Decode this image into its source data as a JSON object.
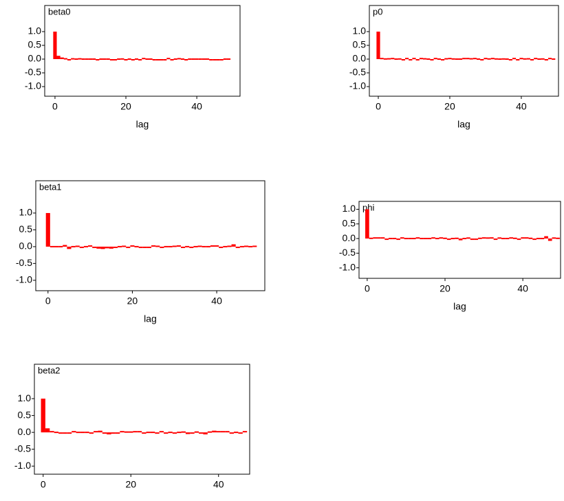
{
  "chart_data": [
    {
      "type": "bar",
      "title": "beta0",
      "xlabel": "lag",
      "color": "#ff0000",
      "x": [
        0,
        1,
        2,
        3,
        4,
        5,
        6,
        7,
        8,
        9,
        10,
        11,
        12,
        13,
        14,
        15,
        16,
        17,
        18,
        19,
        20,
        21,
        22,
        23,
        24,
        25,
        26,
        27,
        28,
        29,
        30,
        31,
        32,
        33,
        34,
        35,
        36,
        37,
        38,
        39,
        40,
        41,
        42,
        43,
        44,
        45,
        46,
        47,
        48,
        49
      ],
      "values": [
        1.0,
        0.12,
        0.06,
        0.01,
        -0.03,
        0.01,
        0.0,
        0.01,
        0.0,
        0.0,
        -0.01,
        0.0,
        -0.03,
        0.0,
        0.0,
        0.0,
        -0.04,
        -0.05,
        -0.02,
        0.03,
        -0.03,
        0.0,
        -0.04,
        0.0,
        -0.04,
        0.02,
        0.0,
        0.0,
        -0.03,
        -0.04,
        -0.04,
        -0.04,
        0.02,
        -0.03,
        0.0,
        0.04,
        0.0,
        -0.03,
        0.0,
        0.0,
        -0.01,
        0.0,
        0.0,
        0.0,
        -0.04,
        -0.04,
        -0.05,
        -0.04,
        0.0,
        0.0
      ],
      "xlim": [
        -2.9,
        52.2
      ],
      "ylim": [
        -1.35,
        1.95
      ],
      "xticks": [
        0,
        20,
        40
      ],
      "yticks": [
        {
          "value": 1,
          "label": "1.0"
        },
        0.5,
        {
          "value": 0,
          "label": "0.0"
        },
        -0.5,
        {
          "value": -1,
          "label": "-1.0"
        }
      ]
    },
    {
      "type": "bar",
      "title": "p0",
      "xlabel": "lag",
      "color": "#ff0000",
      "x": [
        0,
        1,
        2,
        3,
        4,
        5,
        6,
        7,
        8,
        9,
        10,
        11,
        12,
        13,
        14,
        15,
        16,
        17,
        18,
        19,
        20,
        21,
        22,
        23,
        24,
        25,
        26,
        27,
        28,
        29,
        30,
        31,
        32,
        33,
        34,
        35,
        36,
        37,
        38,
        39,
        40,
        41,
        42,
        43,
        44,
        45,
        46,
        47,
        48,
        49
      ],
      "values": [
        1.0,
        0.02,
        0.03,
        0.01,
        0.02,
        -0.02,
        0.03,
        -0.05,
        0.02,
        -0.03,
        0.02,
        -0.03,
        0.02,
        0.01,
        0.0,
        -0.03,
        0.02,
        0.0,
        -0.03,
        0.01,
        0.02,
        0.03,
        0.0,
        -0.01,
        0.02,
        0.02,
        0.01,
        0.02,
        -0.02,
        -0.03,
        0.02,
        0.03,
        0.02,
        0.03,
        -0.02,
        0.03,
        0.0,
        -0.04,
        0.02,
        -0.03,
        0.02,
        0.03,
        0.01,
        -0.04,
        0.02,
        -0.02,
        0.03,
        -0.03,
        0.02,
        0.0
      ],
      "xlim": [
        -2.5,
        50.4
      ],
      "ylim": [
        -1.35,
        1.95
      ],
      "xticks": [
        0,
        20,
        40
      ],
      "yticks": [
        {
          "value": 1,
          "label": "1.0"
        },
        0.5,
        {
          "value": 0,
          "label": "0.0"
        },
        -0.5,
        {
          "value": -1,
          "label": "-1.0"
        }
      ]
    },
    {
      "type": "bar",
      "title": "beta1",
      "xlabel": "lag",
      "color": "#ff0000",
      "x": [
        0,
        1,
        2,
        3,
        4,
        5,
        6,
        7,
        8,
        9,
        10,
        11,
        12,
        13,
        14,
        15,
        16,
        17,
        18,
        19,
        20,
        21,
        22,
        23,
        24,
        25,
        26,
        27,
        28,
        29,
        30,
        31,
        32,
        33,
        34,
        35,
        36,
        37,
        38,
        39,
        40,
        41,
        42,
        43,
        44,
        45,
        46,
        47,
        48,
        49
      ],
      "values": [
        1.0,
        0.0,
        0.0,
        0.0,
        0.05,
        -0.07,
        0.0,
        0.03,
        -0.03,
        0.0,
        0.02,
        -0.03,
        -0.06,
        -0.07,
        -0.05,
        -0.06,
        -0.03,
        -0.02,
        0.03,
        -0.03,
        0.02,
        0.0,
        -0.03,
        -0.03,
        -0.03,
        0.02,
        0.03,
        -0.03,
        0.0,
        0.0,
        0.03,
        0.04,
        -0.03,
        0.0,
        -0.03,
        -0.02,
        0.03,
        0.0,
        0.0,
        0.04,
        0.02,
        -0.03,
        -0.02,
        0.03,
        0.07,
        -0.03,
        -0.02,
        0.03,
        0.0,
        0.03
      ],
      "xlim": [
        -2.9,
        51.4
      ],
      "ylim": [
        -1.31,
        1.96
      ],
      "xticks": [
        0,
        20,
        40
      ],
      "yticks": [
        {
          "value": 1,
          "label": "1.0"
        },
        0.5,
        {
          "value": 0,
          "label": "0.0"
        },
        -0.5,
        {
          "value": -1,
          "label": "-1.0"
        }
      ]
    },
    {
      "type": "bar",
      "title": "phi",
      "xlabel": "lag",
      "color": "#ff0000",
      "x": [
        0,
        1,
        2,
        3,
        4,
        5,
        6,
        7,
        8,
        9,
        10,
        11,
        12,
        13,
        14,
        15,
        16,
        17,
        18,
        19,
        20,
        21,
        22,
        23,
        24,
        25,
        26,
        27,
        28,
        29,
        30,
        31,
        32,
        33,
        34,
        35,
        36,
        37,
        38,
        39,
        40,
        41,
        42,
        43,
        44,
        45,
        46,
        47,
        48,
        49
      ],
      "values": [
        1.0,
        0.03,
        0.02,
        0.02,
        0.02,
        -0.03,
        -0.02,
        -0.02,
        -0.03,
        0.02,
        -0.02,
        -0.02,
        0.0,
        0.02,
        0.0,
        0.0,
        0.0,
        0.02,
        0.0,
        0.02,
        0.03,
        -0.04,
        -0.02,
        0.03,
        -0.06,
        -0.02,
        0.04,
        -0.03,
        -0.03,
        0.03,
        0.02,
        0.04,
        0.02,
        -0.03,
        0.04,
        -0.02,
        -0.02,
        0.02,
        0.03,
        -0.03,
        0.02,
        0.02,
        0.03,
        -0.03,
        0.0,
        0.0,
        0.08,
        -0.08,
        0.04,
        0.03
      ],
      "xlim": [
        -2.1,
        49.7
      ],
      "ylim": [
        -1.36,
        1.27
      ],
      "xticks": [
        0,
        20,
        40
      ],
      "yticks": [
        {
          "value": 1,
          "label": "1.0"
        },
        0.5,
        {
          "value": 0,
          "label": "0.0"
        },
        -0.5,
        {
          "value": -1,
          "label": "-1.0"
        }
      ]
    },
    {
      "type": "bar",
      "title": "beta2",
      "color": "#ff0000",
      "x": [
        0,
        1,
        2,
        3,
        4,
        5,
        6,
        7,
        8,
        9,
        10,
        11,
        12,
        13,
        14,
        15,
        16,
        17,
        18,
        19,
        20,
        21,
        22,
        23,
        24,
        25,
        26,
        27,
        28,
        29,
        30,
        31,
        32,
        33,
        34,
        35,
        36,
        37,
        38,
        39,
        40,
        41,
        42,
        43,
        44,
        45,
        46
      ],
      "values": [
        1.0,
        0.12,
        0.02,
        -0.02,
        -0.03,
        -0.03,
        -0.03,
        0.02,
        0.0,
        -0.02,
        0.0,
        -0.03,
        0.02,
        0.05,
        -0.03,
        -0.06,
        -0.04,
        -0.04,
        0.02,
        0.03,
        0.03,
        0.04,
        0.04,
        -0.04,
        0.0,
        0.0,
        -0.04,
        0.04,
        -0.04,
        0.0,
        -0.03,
        0.0,
        0.03,
        -0.05,
        -0.03,
        0.03,
        -0.03,
        -0.06,
        0.03,
        0.05,
        0.04,
        0.04,
        0.04,
        -0.04,
        0.0,
        -0.03,
        0.02
      ],
      "xlim": [
        -2.0,
        47.1
      ],
      "ylim": [
        -1.24,
        2.02
      ],
      "xticks": [
        0,
        20,
        40
      ],
      "yticks": [
        {
          "value": 1,
          "label": "1.0"
        },
        0.5,
        {
          "value": 0,
          "label": "0.0"
        },
        -0.5,
        {
          "value": -1,
          "label": "-1.0"
        }
      ]
    }
  ]
}
